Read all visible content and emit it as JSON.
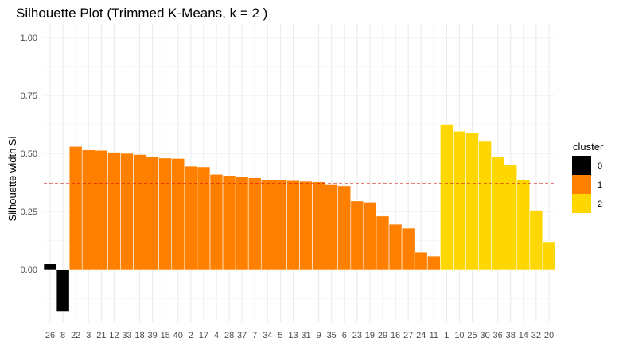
{
  "chart_data": {
    "type": "bar",
    "title": "Silhouette Plot (Trimmed K-Means, k = 2 )",
    "xlabel": "",
    "ylabel": "Silhouette width Si",
    "ylim": [
      -0.2,
      1.0
    ],
    "yticks": [
      "0.00",
      "0.25",
      "0.50",
      "0.75",
      "1.00"
    ],
    "grid": true,
    "legend_position": "right",
    "legend_title": "cluster",
    "legend": [
      {
        "name": "0",
        "color": "#000000"
      },
      {
        "name": "1",
        "color": "#ff8000"
      },
      {
        "name": "2",
        "color": "#ffd700"
      }
    ],
    "average_line": {
      "value": 0.37,
      "color": "#cc0000",
      "style": "dashed"
    },
    "categories": [
      "26",
      "8",
      "22",
      "3",
      "21",
      "12",
      "33",
      "18",
      "39",
      "15",
      "40",
      "2",
      "17",
      "4",
      "28",
      "37",
      "7",
      "34",
      "5",
      "13",
      "31",
      "9",
      "35",
      "6",
      "23",
      "19",
      "29",
      "16",
      "27",
      "24",
      "11",
      "1",
      "10",
      "25",
      "30",
      "36",
      "38",
      "14",
      "32",
      "20"
    ],
    "values": [
      0.025,
      -0.18,
      0.53,
      0.515,
      0.513,
      0.505,
      0.5,
      0.495,
      0.485,
      0.48,
      0.478,
      0.445,
      0.442,
      0.41,
      0.405,
      0.4,
      0.395,
      0.385,
      0.385,
      0.383,
      0.38,
      0.378,
      0.365,
      0.36,
      0.295,
      0.29,
      0.23,
      0.195,
      0.178,
      0.075,
      0.058,
      0.625,
      0.595,
      0.59,
      0.555,
      0.485,
      0.45,
      0.385,
      0.255,
      0.12
    ],
    "clusters": [
      "0",
      "0",
      "1",
      "1",
      "1",
      "1",
      "1",
      "1",
      "1",
      "1",
      "1",
      "1",
      "1",
      "1",
      "1",
      "1",
      "1",
      "1",
      "1",
      "1",
      "1",
      "1",
      "1",
      "1",
      "1",
      "1",
      "1",
      "1",
      "1",
      "1",
      "1",
      "2",
      "2",
      "2",
      "2",
      "2",
      "2",
      "2",
      "2",
      "2"
    ]
  }
}
